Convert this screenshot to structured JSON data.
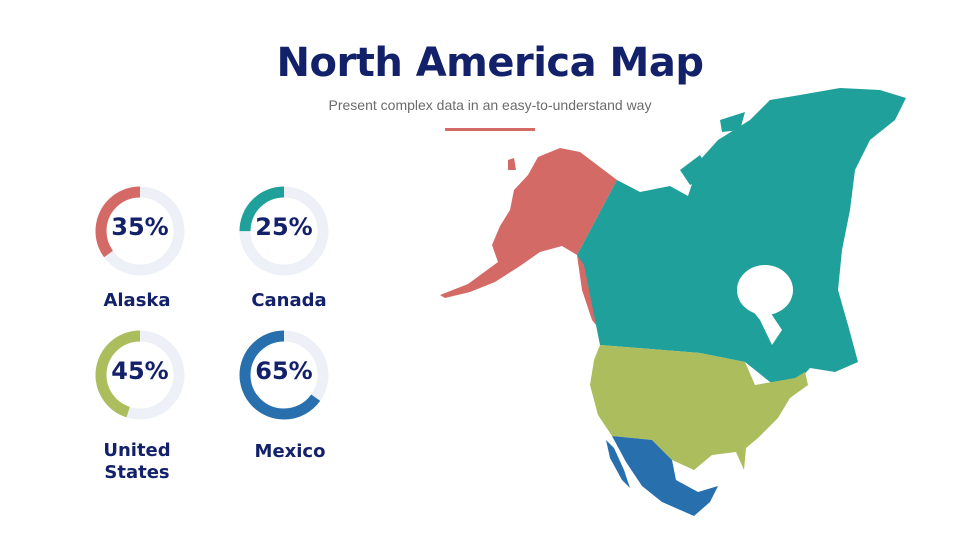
{
  "header": {
    "title": "North America Map",
    "subtitle": "Present complex data in an easy-to-understand way",
    "accent_rule_color": "#d46a66"
  },
  "stats": [
    {
      "region": "Alaska",
      "percent_label": "35%",
      "value": 35,
      "color": "#d46a66"
    },
    {
      "region": "Canada",
      "percent_label": "25%",
      "value": 25,
      "color": "#20a09a"
    },
    {
      "region": "United States",
      "percent_label": "45%",
      "value": 45,
      "color": "#acbd5e"
    },
    {
      "region": "Mexico",
      "percent_label": "65%",
      "value": 65,
      "color": "#2870ad"
    }
  ],
  "donut_track_color": "#edf1f7",
  "map": {
    "regions": [
      {
        "name": "Alaska",
        "color": "#d46a66"
      },
      {
        "name": "Canada",
        "color": "#20a09a"
      },
      {
        "name": "United States",
        "color": "#acbd5e"
      },
      {
        "name": "Mexico",
        "color": "#2870ad"
      }
    ]
  }
}
